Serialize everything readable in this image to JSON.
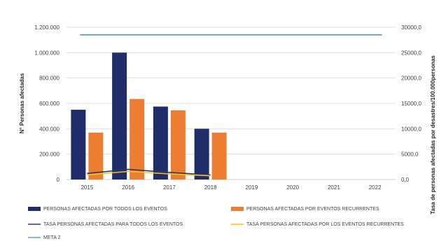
{
  "chart_data": {
    "type": "bar",
    "categories": [
      "2015",
      "2016",
      "2017",
      "2018",
      "2019",
      "2020",
      "2021",
      "2022"
    ],
    "series": [
      {
        "name": "PERSONAS AFECTADAS POR TODOS LOS EVENTOS",
        "type": "bar",
        "axis": "left",
        "color": "#1f2d6b",
        "values": [
          550000,
          1000000,
          575000,
          400000,
          null,
          null,
          null,
          null
        ]
      },
      {
        "name": "PERSONAS AFECTADAS POR EVENTOS RECURRENTES",
        "type": "bar",
        "axis": "left",
        "color": "#ed7d31",
        "values": [
          370000,
          635000,
          545000,
          370000,
          null,
          null,
          null,
          null
        ]
      },
      {
        "name": "TASA PERSONAS AFECTADAS PARA TODOS LOS EVENTOS",
        "type": "line",
        "axis": "right",
        "color": "#243a73",
        "values": [
          1200,
          2000,
          1400,
          900,
          null,
          null,
          null,
          null
        ]
      },
      {
        "name": "TASA PERSONAS AFECTADAS POR LOS EVENTOS RECURRENTES",
        "type": "line",
        "axis": "right",
        "color": "#ffc000",
        "values": [
          900,
          1600,
          1100,
          750,
          null,
          null,
          null,
          null
        ]
      },
      {
        "name": "META 2",
        "type": "line",
        "axis": "right",
        "color": "#5b9bd5",
        "values": [
          28500,
          28500,
          28500,
          28500,
          28500,
          28500,
          28500,
          28500
        ]
      }
    ],
    "ylabel": "N° Personas afectadas",
    "y2label": "Tasa de personas afectadas por desastres/100.000personas",
    "ylim": [
      0,
      1200000
    ],
    "y2lim": [
      0,
      30000
    ],
    "yticks": [
      "0",
      "200.000",
      "400.000",
      "600.000",
      "800.000",
      "1.000.000",
      "1.200.000"
    ],
    "y2ticks": [
      "0,0",
      "5000,0",
      "10000,0",
      "15000,0",
      "20000,0",
      "25000,0",
      "30000,0"
    ],
    "grid": true,
    "legend_position": "bottom"
  }
}
